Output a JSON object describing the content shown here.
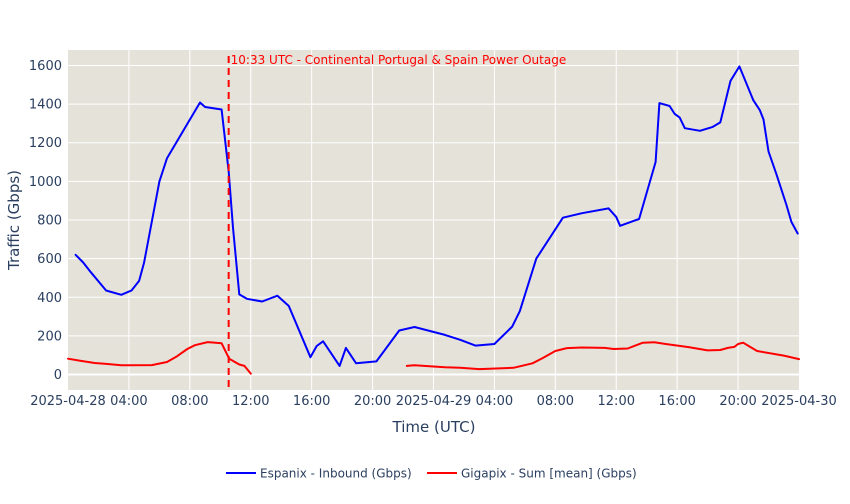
{
  "chart_data": {
    "type": "line",
    "title": "",
    "xlabel": "Time (UTC)",
    "ylabel": "Traffic (Gbps)",
    "xlim": [
      "2025-04-28 00:00",
      "2025-04-30 00:00"
    ],
    "ylim": [
      -80,
      1680
    ],
    "x_ticks": [
      {
        "t": "2025-04-28 00:00",
        "label": "2025-04-28"
      },
      {
        "t": "2025-04-28 04:00",
        "label": "04:00"
      },
      {
        "t": "2025-04-28 08:00",
        "label": "08:00"
      },
      {
        "t": "2025-04-28 12:00",
        "label": "12:00"
      },
      {
        "t": "2025-04-28 16:00",
        "label": "16:00"
      },
      {
        "t": "2025-04-28 20:00",
        "label": "20:00"
      },
      {
        "t": "2025-04-29 00:00",
        "label": "2025-04-29"
      },
      {
        "t": "2025-04-29 04:00",
        "label": "04:00"
      },
      {
        "t": "2025-04-29 08:00",
        "label": "08:00"
      },
      {
        "t": "2025-04-29 12:00",
        "label": "12:00"
      },
      {
        "t": "2025-04-29 16:00",
        "label": "16:00"
      },
      {
        "t": "2025-04-29 20:00",
        "label": "20:00"
      },
      {
        "t": "2025-04-30 00:00",
        "label": "2025-04-30"
      }
    ],
    "y_ticks": [
      0,
      200,
      400,
      600,
      800,
      1000,
      1200,
      1400,
      1600
    ],
    "grid": true,
    "legend_position": "bottom-center",
    "background_color": "#e5e2da",
    "annotation": {
      "t": "2025-04-28 10:33",
      "text": "10:33 UTC - Continental Portugal & Spain Power Outage",
      "color": "#ff0000"
    },
    "series": [
      {
        "name": "Espanix - Inbound (Gbps)",
        "color": "#0000ff",
        "points": [
          [
            "2025-04-28 00:30",
            620
          ],
          [
            "2025-04-28 01:00",
            580
          ],
          [
            "2025-04-28 01:30",
            530
          ],
          [
            "2025-04-28 02:30",
            435
          ],
          [
            "2025-04-28 03:30",
            413
          ],
          [
            "2025-04-28 04:10",
            435
          ],
          [
            "2025-04-28 04:40",
            485
          ],
          [
            "2025-04-28 05:00",
            580
          ],
          [
            "2025-04-28 06:00",
            1000
          ],
          [
            "2025-04-28 06:30",
            1120
          ],
          [
            "2025-04-28 08:40",
            1408
          ],
          [
            "2025-04-28 09:00",
            1385
          ],
          [
            "2025-04-28 10:05",
            1372
          ],
          [
            "2025-04-28 10:33",
            1050
          ],
          [
            "2025-04-28 10:50",
            760
          ],
          [
            "2025-04-28 11:15",
            415
          ],
          [
            "2025-04-28 11:45",
            392
          ],
          [
            "2025-04-28 12:45",
            378
          ],
          [
            "2025-04-28 13:45",
            408
          ],
          [
            "2025-04-28 14:30",
            355
          ],
          [
            "2025-04-28 15:55",
            90
          ],
          [
            "2025-04-28 16:20",
            148
          ],
          [
            "2025-04-28 16:45",
            172
          ],
          [
            "2025-04-28 17:50",
            45
          ],
          [
            "2025-04-28 18:15",
            138
          ],
          [
            "2025-04-28 18:55",
            58
          ],
          [
            "2025-04-28 20:15",
            68
          ],
          [
            "2025-04-28 21:45",
            228
          ],
          [
            "2025-04-28 22:45",
            246
          ],
          [
            "2025-04-29 00:45",
            205
          ],
          [
            "2025-04-29 01:45",
            180
          ],
          [
            "2025-04-29 02:45",
            150
          ],
          [
            "2025-04-29 04:00",
            158
          ],
          [
            "2025-04-29 05:10",
            248
          ],
          [
            "2025-04-29 05:40",
            328
          ],
          [
            "2025-04-29 06:45",
            600
          ],
          [
            "2025-04-29 08:30",
            812
          ],
          [
            "2025-04-29 09:45",
            835
          ],
          [
            "2025-04-29 11:30",
            860
          ],
          [
            "2025-04-29 12:00",
            815
          ],
          [
            "2025-04-29 12:15",
            770
          ],
          [
            "2025-04-29 13:30",
            805
          ],
          [
            "2025-04-29 14:35",
            1100
          ],
          [
            "2025-04-29 14:50",
            1405
          ],
          [
            "2025-04-29 15:30",
            1390
          ],
          [
            "2025-04-29 15:50",
            1350
          ],
          [
            "2025-04-29 16:10",
            1330
          ],
          [
            "2025-04-29 16:30",
            1275
          ],
          [
            "2025-04-29 17:30",
            1262
          ],
          [
            "2025-04-29 18:20",
            1282
          ],
          [
            "2025-04-29 18:50",
            1305
          ],
          [
            "2025-04-29 19:30",
            1520
          ],
          [
            "2025-04-29 20:05",
            1595
          ],
          [
            "2025-04-29 21:00",
            1420
          ],
          [
            "2025-04-29 21:25",
            1370
          ],
          [
            "2025-04-29 21:40",
            1320
          ],
          [
            "2025-04-29 22:00",
            1155
          ],
          [
            "2025-04-29 22:30",
            1040
          ],
          [
            "2025-04-29 22:45",
            980
          ],
          [
            "2025-04-29 23:10",
            880
          ],
          [
            "2025-04-29 23:30",
            790
          ],
          [
            "2025-04-29 23:55",
            730
          ]
        ]
      },
      {
        "name": "Gigapix - Sum [mean] (Gbps)",
        "color": "#ff0000",
        "points": [
          [
            "2025-04-28 00:00",
            82
          ],
          [
            "2025-04-28 00:45",
            72
          ],
          [
            "2025-04-28 01:45",
            60
          ],
          [
            "2025-04-28 02:30",
            55
          ],
          [
            "2025-04-28 03:30",
            48
          ],
          [
            "2025-04-28 05:30",
            49
          ],
          [
            "2025-04-28 06:30",
            65
          ],
          [
            "2025-04-28 07:10",
            95
          ],
          [
            "2025-04-28 07:50",
            132
          ],
          [
            "2025-04-28 08:20",
            152
          ],
          [
            "2025-04-28 09:10",
            168
          ],
          [
            "2025-04-28 09:30",
            166
          ],
          [
            "2025-04-28 10:05",
            162
          ],
          [
            "2025-04-28 10:35",
            82
          ],
          [
            "2025-04-28 11:15",
            52
          ],
          [
            "2025-04-28 11:35",
            45
          ],
          [
            "2025-04-28 12:00",
            5
          ],
          null,
          [
            "2025-04-28 22:15",
            45
          ],
          [
            "2025-04-28 22:45",
            48
          ],
          [
            "2025-04-29 00:45",
            38
          ],
          [
            "2025-04-29 01:45",
            35
          ],
          [
            "2025-04-29 03:00",
            28
          ],
          [
            "2025-04-29 05:15",
            35
          ],
          [
            "2025-04-29 06:30",
            58
          ],
          [
            "2025-04-29 07:10",
            85
          ],
          [
            "2025-04-29 08:00",
            122
          ],
          [
            "2025-04-29 08:45",
            137
          ],
          [
            "2025-04-29 09:45",
            140
          ],
          [
            "2025-04-29 11:15",
            138
          ],
          [
            "2025-04-29 11:50",
            132
          ],
          [
            "2025-04-29 12:45",
            135
          ],
          [
            "2025-04-29 13:15",
            150
          ],
          [
            "2025-04-29 13:45",
            165
          ],
          [
            "2025-04-29 14:30",
            167
          ],
          [
            "2025-04-29 15:15",
            158
          ],
          [
            "2025-04-29 16:45",
            142
          ],
          [
            "2025-04-29 18:00",
            125
          ],
          [
            "2025-04-29 18:50",
            127
          ],
          [
            "2025-04-29 19:20",
            138
          ],
          [
            "2025-04-29 19:45",
            143
          ],
          [
            "2025-04-29 20:00",
            158
          ],
          [
            "2025-04-29 20:20",
            165
          ],
          [
            "2025-04-29 20:45",
            145
          ],
          [
            "2025-04-29 21:15",
            122
          ],
          [
            "2025-04-29 23:00",
            98
          ],
          [
            "2025-04-30 00:00",
            80
          ]
        ]
      }
    ]
  }
}
